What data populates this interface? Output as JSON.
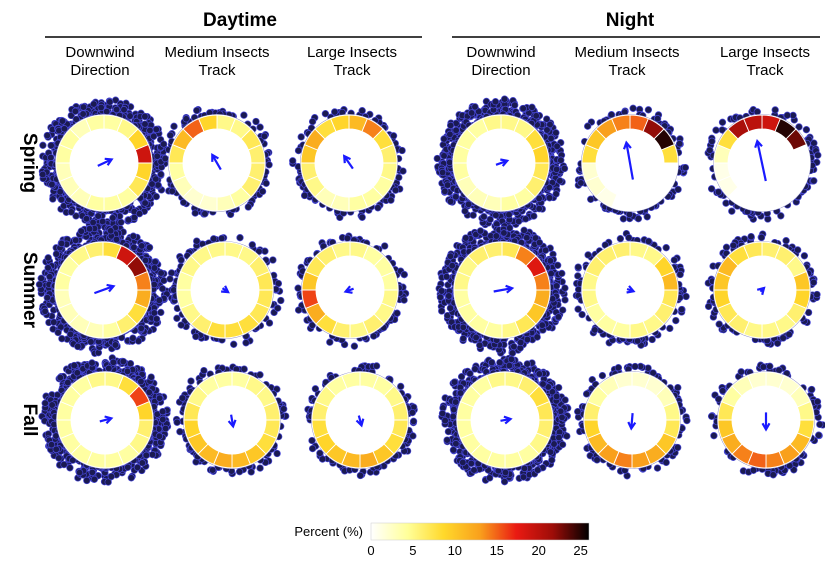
{
  "chart_data": {
    "type": "circular-heatmap",
    "groups": [
      "Daytime",
      "Night"
    ],
    "columns": [
      [
        "Downwind",
        "Direction"
      ],
      [
        "Medium Insects",
        "Track"
      ],
      [
        "Large Insects",
        "Track"
      ]
    ],
    "rows": [
      "Spring",
      "Summer",
      "Fall"
    ],
    "sectors_per_ring": 16,
    "sector_start": "north, clockwise",
    "panels": [
      {
        "group": "Daytime",
        "column": "Downwind Direction",
        "row": "Spring",
        "sectors": [
          4,
          5,
          9,
          19,
          9,
          7,
          4,
          4,
          4,
          3,
          3,
          3,
          4,
          4,
          3,
          4
        ],
        "mean_direction_deg": 65,
        "mean_length": 0.45,
        "outer_points": "dense"
      },
      {
        "group": "Daytime",
        "column": "Medium Insects Track",
        "row": "Spring",
        "sectors": [
          5,
          5,
          7,
          6,
          6,
          6,
          4,
          3,
          2,
          2,
          3,
          4,
          7,
          11,
          15,
          9
        ],
        "mean_direction_deg": 330,
        "mean_length": 0.5,
        "outer_points": "sparse"
      },
      {
        "group": "Daytime",
        "column": "Large Insects Track",
        "row": "Spring",
        "sectors": [
          11,
          14,
          8,
          6,
          5,
          4,
          4,
          4,
          3,
          3,
          5,
          6,
          10,
          12,
          8,
          9
        ],
        "mean_direction_deg": 325,
        "mean_length": 0.45,
        "outer_points": "sparse"
      },
      {
        "group": "Night",
        "column": "Downwind Direction",
        "row": "Spring",
        "sectors": [
          5,
          5,
          8,
          9,
          7,
          6,
          4,
          4,
          3,
          3,
          3,
          4,
          4,
          4,
          4,
          5
        ],
        "mean_direction_deg": 70,
        "mean_length": 0.35,
        "outer_points": "dense"
      },
      {
        "group": "Night",
        "column": "Medium Insects Track",
        "row": "Spring",
        "sectors": [
          15,
          22,
          25,
          8,
          0,
          0,
          0,
          0,
          0,
          1,
          2,
          2,
          8,
          10,
          13,
          14
        ],
        "mean_direction_deg": 350,
        "mean_length": 1.1,
        "outer_points": "sparse"
      },
      {
        "group": "Night",
        "column": "Large Insects Track",
        "row": "Spring",
        "sectors": [
          19,
          25,
          23,
          0,
          0,
          0,
          0,
          0,
          0,
          0,
          1,
          1,
          3,
          8,
          21,
          20
        ],
        "mean_direction_deg": 348,
        "mean_length": 1.2,
        "outer_points": "sparse"
      },
      {
        "group": "Daytime",
        "column": "Downwind Direction",
        "row": "Summer",
        "sectors": [
          8,
          19,
          22,
          14,
          12,
          8,
          6,
          4,
          3,
          3,
          3,
          3,
          4,
          4,
          5,
          6
        ],
        "mean_direction_deg": 70,
        "mean_length": 0.6,
        "outer_points": "dense"
      },
      {
        "group": "Daytime",
        "column": "Medium Insects Track",
        "row": "Summer",
        "sectors": [
          5,
          5,
          6,
          7,
          7,
          7,
          8,
          8,
          8,
          6,
          5,
          4,
          4,
          5,
          5,
          5
        ],
        "mean_direction_deg": 125,
        "mean_length": 0.2,
        "outer_points": "sparse"
      },
      {
        "group": "Daytime",
        "column": "Large Insects Track",
        "row": "Summer",
        "sectors": [
          5,
          4,
          4,
          4,
          5,
          5,
          6,
          5,
          6,
          8,
          12,
          16,
          10,
          7,
          6,
          5
        ],
        "mean_direction_deg": 250,
        "mean_length": 0.25,
        "outer_points": "sparse"
      },
      {
        "group": "Night",
        "column": "Downwind Direction",
        "row": "Summer",
        "sectors": [
          7,
          14,
          18,
          14,
          12,
          10,
          7,
          5,
          4,
          4,
          4,
          4,
          5,
          5,
          6,
          6
        ],
        "mean_direction_deg": 80,
        "mean_length": 0.55,
        "outer_points": "dense"
      },
      {
        "group": "Night",
        "column": "Medium Insects Track",
        "row": "Summer",
        "sectors": [
          5,
          5,
          9,
          11,
          7,
          6,
          5,
          5,
          4,
          4,
          4,
          5,
          5,
          6,
          6,
          6
        ],
        "mean_direction_deg": 110,
        "mean_length": 0.2,
        "outer_points": "sparse"
      },
      {
        "group": "Night",
        "column": "Large Insects Track",
        "row": "Summer",
        "sectors": [
          6,
          6,
          5,
          10,
          9,
          6,
          5,
          5,
          5,
          6,
          7,
          9,
          10,
          11,
          8,
          7
        ],
        "mean_direction_deg": 45,
        "mean_length": 0.15,
        "outer_points": "sparse"
      },
      {
        "group": "Daytime",
        "column": "Downwind Direction",
        "row": "Fall",
        "sectors": [
          5,
          8,
          16,
          9,
          6,
          5,
          4,
          4,
          4,
          4,
          4,
          4,
          4,
          4,
          4,
          5
        ],
        "mean_direction_deg": 75,
        "mean_length": 0.35,
        "outer_points": "dense"
      },
      {
        "group": "Daytime",
        "column": "Medium Insects Track",
        "row": "Fall",
        "sectors": [
          4,
          5,
          5,
          6,
          7,
          8,
          10,
          11,
          12,
          11,
          10,
          9,
          7,
          5,
          4,
          4
        ],
        "mean_direction_deg": 170,
        "mean_length": 0.35,
        "outer_points": "sparse"
      },
      {
        "group": "Daytime",
        "column": "Large Insects Track",
        "row": "Fall",
        "sectors": [
          4,
          4,
          5,
          6,
          7,
          8,
          10,
          12,
          11,
          10,
          9,
          8,
          6,
          5,
          4,
          4
        ],
        "mean_direction_deg": 165,
        "mean_length": 0.3,
        "outer_points": "sparse"
      },
      {
        "group": "Night",
        "column": "Downwind Direction",
        "row": "Fall",
        "sectors": [
          5,
          6,
          8,
          7,
          6,
          5,
          4,
          4,
          4,
          4,
          4,
          4,
          4,
          4,
          4,
          5
        ],
        "mean_direction_deg": 80,
        "mean_length": 0.3,
        "outer_points": "dense"
      },
      {
        "group": "Night",
        "column": "Medium Insects Track",
        "row": "Fall",
        "sectors": [
          2,
          2,
          3,
          5,
          7,
          10,
          12,
          13,
          14,
          13,
          11,
          9,
          6,
          4,
          3,
          2
        ],
        "mean_direction_deg": 185,
        "mean_length": 0.45,
        "outer_points": "sparse"
      },
      {
        "group": "Night",
        "column": "Large Insects Track",
        "row": "Fall",
        "sectors": [
          2,
          2,
          3,
          5,
          8,
          11,
          13,
          14,
          15,
          14,
          12,
          10,
          7,
          4,
          3,
          2
        ],
        "mean_direction_deg": 180,
        "mean_length": 0.5,
        "outer_points": "sparse"
      }
    ],
    "colorbar": {
      "label": "Percent (%)",
      "ticks": [
        0,
        5,
        10,
        15,
        20,
        25
      ],
      "range": [
        0,
        26
      ],
      "colors": [
        "#ffffff",
        "#ffff9a",
        "#ffd92b",
        "#f9a01c",
        "#ea1a12",
        "#9e0d08",
        "#000000"
      ]
    },
    "arrow_color": "#1a1aff",
    "point_color": "#1a1a52",
    "point_outline": "#4848d8"
  }
}
